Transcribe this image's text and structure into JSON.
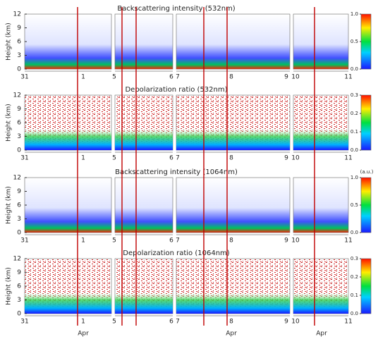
{
  "chart_data": [
    {
      "type": "heatmap",
      "title": "Backscattering intensity (532nm)",
      "ylabel": "Height (km)",
      "ylim": [
        0,
        12
      ],
      "yticks": [
        0,
        3,
        6,
        9,
        12
      ],
      "x_labels": [
        "31",
        "1",
        "5",
        "6",
        "7",
        "8",
        "9",
        "10",
        "11"
      ],
      "clim": [
        0,
        1
      ],
      "cticks": [
        {
          "value": 1,
          "label": "1.0"
        },
        {
          "value": 0.5,
          "label": "0.5"
        },
        {
          "value": 0,
          "label": "0.0"
        }
      ]
    },
    {
      "type": "heatmap",
      "title": "Depolarization ratio (532nm)",
      "ylabel": "Height (km)",
      "ylim": [
        0,
        12
      ],
      "yticks": [
        0,
        3,
        6,
        9,
        12
      ],
      "x_labels": [
        "31",
        "1",
        "5",
        "6",
        "7",
        "8",
        "9",
        "10",
        "11"
      ],
      "clim": [
        0,
        0.3
      ],
      "cticks": [
        {
          "value": 0.3,
          "label": "0.3"
        },
        {
          "value": 0.2,
          "label": "0.2"
        },
        {
          "value": 0.1,
          "label": "0.1"
        },
        {
          "value": 0,
          "label": "0.0"
        }
      ]
    },
    {
      "type": "heatmap",
      "title": "Backscattering intensity (1064nm)",
      "ylabel": "Height (km)",
      "ylim": [
        0,
        12
      ],
      "yticks": [
        0,
        3,
        6,
        9,
        12
      ],
      "x_labels": [
        "31",
        "1",
        "5",
        "6",
        "7",
        "8",
        "9",
        "10",
        "11"
      ],
      "clim": [
        0,
        1
      ],
      "cunit": "(a.u.)",
      "cticks": [
        {
          "value": 1,
          "label": "1.0"
        },
        {
          "value": 0.5,
          "label": "0.5"
        },
        {
          "value": 0,
          "label": "0.0"
        }
      ]
    },
    {
      "type": "heatmap",
      "title": "Depolarization ratio (1064nm)",
      "ylabel": "Height (km)",
      "ylim": [
        0,
        12
      ],
      "yticks": [
        0,
        3,
        6,
        9,
        12
      ],
      "x_labels": [
        "31",
        "1",
        "5",
        "6",
        "7",
        "8",
        "9",
        "10",
        "11"
      ],
      "month_labels": [
        "Apr",
        "Apr",
        "Apr"
      ],
      "clim": [
        0,
        0.3
      ],
      "cticks": [
        {
          "value": 0.3,
          "label": "0.3"
        },
        {
          "value": 0.2,
          "label": "0.2"
        },
        {
          "value": 0.1,
          "label": "0.1"
        },
        {
          "value": 0,
          "label": "0.0"
        }
      ]
    }
  ]
}
